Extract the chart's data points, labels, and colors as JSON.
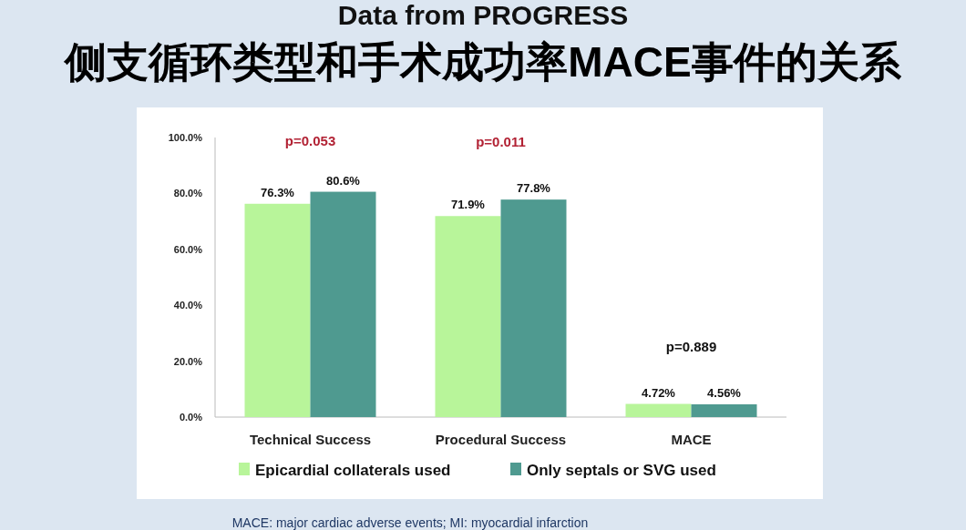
{
  "chart_data": {
    "type": "bar",
    "title": "Data from PROGRESS",
    "subtitle": "侧支循环类型和手术成功率MACE事件的关系",
    "categories": [
      "Technical Success",
      "Procedural Success",
      "MACE"
    ],
    "series": [
      {
        "name": "Epicardial collaterals used",
        "color": "#b8f59a",
        "values": [
          76.3,
          71.9,
          4.72
        ],
        "value_labels": [
          "76.3%",
          "71.9%",
          "4.72%"
        ]
      },
      {
        "name": "Only septals or SVG used",
        "color": "#4f9a90",
        "values": [
          80.6,
          77.8,
          4.56
        ],
        "value_labels": [
          "80.6%",
          "77.8%",
          "4.56%"
        ]
      }
    ],
    "ylim": [
      0,
      100
    ],
    "yticks": [
      {
        "value": 0,
        "label": "0.0%"
      },
      {
        "value": 20,
        "label": "20.0%"
      },
      {
        "value": 40,
        "label": "40.0%"
      },
      {
        "value": 60,
        "label": "60.0%"
      },
      {
        "value": 80,
        "label": "80.0%"
      },
      {
        "value": 100,
        "label": "100.0%"
      }
    ],
    "annotations": [
      "p=0.053",
      "p=0.011",
      "p=0.889",
      "MACE: major cardiac adverse events; MI: myocardial infarction"
    ],
    "legend": "bottom",
    "grid": false
  }
}
